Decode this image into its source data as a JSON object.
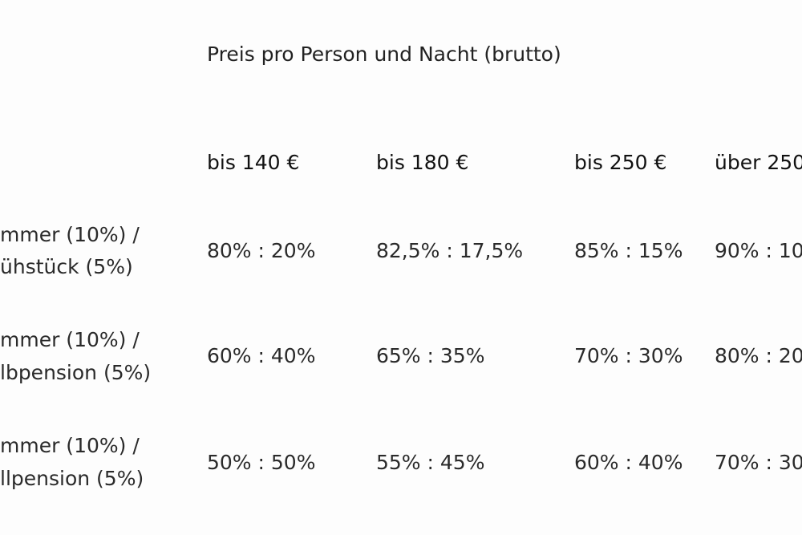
{
  "table": {
    "title": "Preis pro Person und Nacht (brutto)",
    "columns": [
      "bis 140 €",
      "bis 180 €",
      "bis 250 €",
      "über 250"
    ],
    "rows": [
      {
        "label_line1": "mmer (10%) /",
        "label_line2": "ühstück (5%)",
        "cells": [
          "80% : 20%",
          "82,5% : 17,5%",
          "85% : 15%",
          "90% : 10"
        ]
      },
      {
        "label_line1": "mmer (10%) /",
        "label_line2": "lbpension (5%)",
        "cells": [
          "60% : 40%",
          "65% : 35%",
          "70% : 30%",
          "80% : 20"
        ]
      },
      {
        "label_line1": "mmer (10%) /",
        "label_line2": "llpension (5%)",
        "cells": [
          "50% : 50%",
          "55% : 45%",
          "60% : 40%",
          "70% : 30"
        ]
      }
    ]
  }
}
